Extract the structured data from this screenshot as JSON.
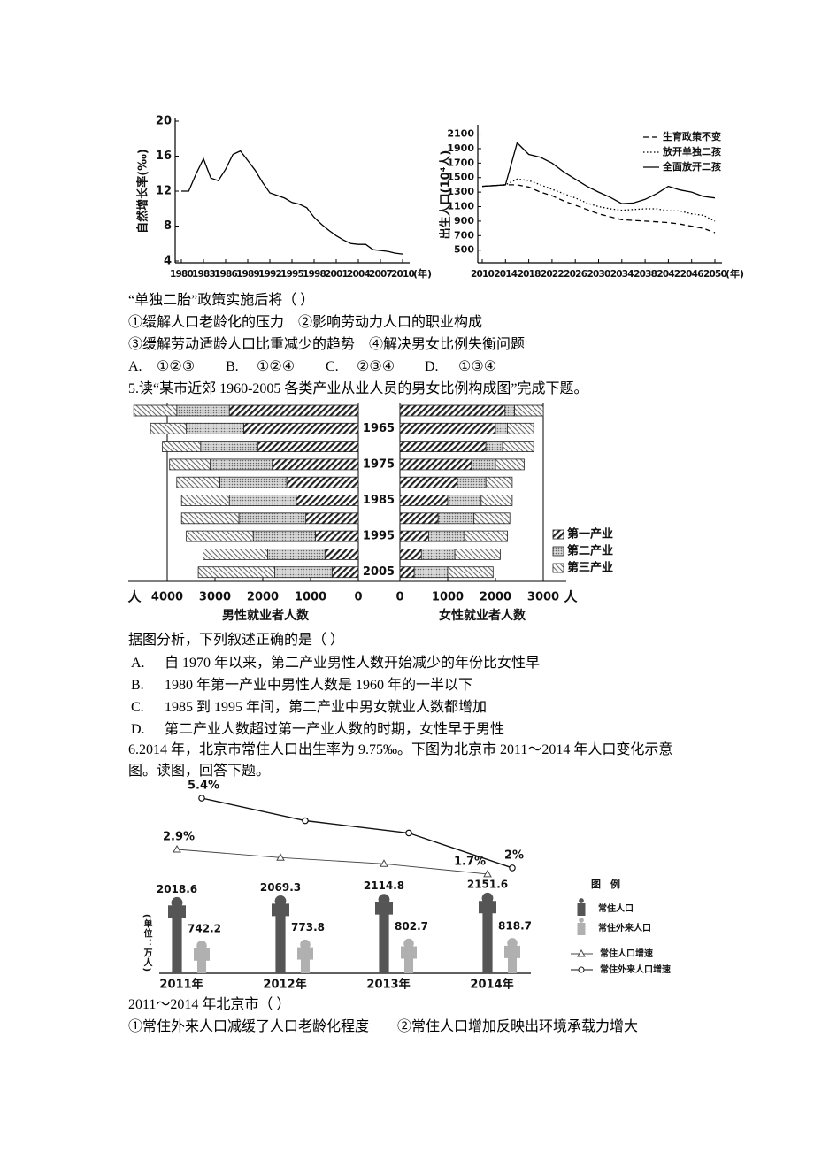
{
  "chart_data": [
    {
      "type": "line",
      "ylabel": "自然增长率(‰)",
      "xlabel": "(年)",
      "x": [
        1980,
        1981,
        1982,
        1983,
        1984,
        1985,
        1986,
        1987,
        1988,
        1989,
        1990,
        1991,
        1992,
        1993,
        1994,
        1995,
        1996,
        1997,
        1998,
        1999,
        2000,
        2001,
        2002,
        2003,
        2004,
        2005,
        2006,
        2007,
        2008,
        2009,
        2010
      ],
      "series": [
        {
          "color": "#000",
          "dash": "solid",
          "values": [
            12.0,
            12.0,
            14.0,
            15.7,
            13.5,
            13.2,
            14.5,
            16.2,
            16.6,
            15.5,
            14.4,
            13.0,
            11.8,
            11.5,
            11.2,
            10.7,
            10.5,
            10.1,
            9.0,
            8.2,
            7.5,
            6.9,
            6.4,
            6.0,
            5.9,
            5.9,
            5.3,
            5.2,
            5.1,
            4.9,
            4.8
          ]
        }
      ],
      "xlim": [
        1980,
        2010
      ],
      "xticks": [
        1980,
        1983,
        1986,
        1989,
        1992,
        1995,
        1998,
        2001,
        2004,
        2007,
        2010
      ],
      "ylim": [
        4,
        20
      ],
      "yticks": [
        4,
        8,
        12,
        16,
        20
      ]
    },
    {
      "type": "line",
      "ylabel": "出生人口(10⁴人)",
      "xlabel": "(年)",
      "x": [
        2010,
        2012,
        2014,
        2016,
        2018,
        2020,
        2022,
        2024,
        2026,
        2028,
        2030,
        2032,
        2034,
        2036,
        2038,
        2040,
        2042,
        2044,
        2046,
        2048,
        2050
      ],
      "series": [
        {
          "name": "生育政策不变",
          "color": "#000",
          "dash": "dashed",
          "values": [
            1380,
            1390,
            1400,
            1400,
            1370,
            1300,
            1250,
            1180,
            1120,
            1060,
            1000,
            960,
            920,
            910,
            900,
            890,
            880,
            860,
            830,
            800,
            740
          ]
        },
        {
          "name": "放开单独二孩",
          "color": "#000",
          "dash": "dotted",
          "values": [
            1380,
            1390,
            1400,
            1480,
            1460,
            1400,
            1340,
            1280,
            1220,
            1150,
            1100,
            1070,
            1050,
            1060,
            1070,
            1070,
            1040,
            1040,
            1000,
            980,
            900
          ]
        },
        {
          "name": "全面放开二孩",
          "color": "#000",
          "dash": "solid",
          "values": [
            1380,
            1390,
            1400,
            1980,
            1820,
            1780,
            1700,
            1580,
            1480,
            1380,
            1300,
            1230,
            1140,
            1150,
            1200,
            1280,
            1380,
            1330,
            1300,
            1240,
            1220
          ]
        }
      ],
      "legend": "upper right",
      "xlim": [
        2010,
        2050
      ],
      "xticks": [
        2010,
        2014,
        2018,
        2022,
        2026,
        2030,
        2034,
        2038,
        2042,
        2046,
        2050
      ],
      "ylim": [
        350,
        2180
      ],
      "yticks": [
        500,
        700,
        900,
        1100,
        1300,
        1500,
        1700,
        1900,
        2100
      ]
    },
    {
      "type": "bar",
      "orientation": "horizontal",
      "stacked": true,
      "categories": [
        null,
        "1965",
        null,
        "1975",
        null,
        "1985",
        null,
        "1995",
        null,
        "2005"
      ],
      "legend": [
        {
          "name": "第一产业",
          "fill": "url(#hatch-dark)"
        },
        {
          "name": "第二产业",
          "fill": "url(#dots)"
        },
        {
          "name": "第三产业",
          "fill": "url(#hatch-light)"
        }
      ],
      "panels": [
        {
          "unit": "人",
          "xlabel": "男性就业者人数",
          "direction": "left",
          "xlim": [
            0,
            4800
          ],
          "xticks": [
            4000,
            3000,
            2000,
            1000,
            0
          ],
          "series": [
            {
              "values": [
                2700,
                2400,
                2100,
                1800,
                1500,
                1300,
                1100,
                900,
                700,
                550
              ]
            },
            {
              "values": [
                1100,
                1200,
                1200,
                1300,
                1400,
                1400,
                1400,
                1300,
                1200,
                1200
              ]
            },
            {
              "values": [
                900,
                750,
                800,
                850,
                900,
                1000,
                1200,
                1400,
                1350,
                1600
              ]
            }
          ]
        },
        {
          "unit": "人",
          "xlabel": "女性就业者人数",
          "direction": "right",
          "xlim": [
            0,
            3200
          ],
          "xticks": [
            0,
            1000,
            2000,
            3000
          ],
          "series": [
            {
              "values": [
                2200,
                2000,
                1800,
                1500,
                1200,
                1000,
                800,
                600,
                450,
                300
              ]
            },
            {
              "values": [
                200,
                250,
                350,
                500,
                600,
                700,
                750,
                750,
                700,
                700
              ]
            },
            {
              "values": [
                600,
                550,
                650,
                600,
                550,
                650,
                750,
                900,
                950,
                950
              ]
            }
          ]
        }
      ]
    },
    {
      "type": "bar_line",
      "unit": "(单位：万人)",
      "legend_title": "图　例",
      "categories": [
        "2011年",
        "2012年",
        "2013年",
        "2014年"
      ],
      "bars": [
        {
          "name": "常住人口",
          "color": "#555",
          "values": [
            2018.6,
            2069.3,
            2114.8,
            2151.6
          ]
        },
        {
          "name": "常住外来人口",
          "color": "#b0b0b0",
          "values": [
            742.2,
            773.8,
            802.7,
            818.7
          ]
        }
      ],
      "lines": [
        {
          "name": "常住人口增速",
          "marker": "triangle",
          "color": "#444",
          "values": [
            2.9,
            2.5,
            2.2,
            1.7
          ],
          "value_labels": [
            "2.9%",
            null,
            null,
            "1.7%"
          ]
        },
        {
          "name": "常住外来人口增速",
          "marker": "circle",
          "color": "#111",
          "values": [
            5.4,
            4.3,
            3.7,
            2
          ],
          "value_labels": [
            "5.4%",
            null,
            null,
            "2%"
          ]
        }
      ]
    }
  ],
  "document": {
    "q4": {
      "stem": "“单独二胎”政策实施后将（ ）",
      "statements": [
        "①缓解人口老龄化的压力　②影响劳动力人口的职业构成",
        "③缓解劳动适龄人口比重减少的趋势　④解决男女比例失衡问题"
      ],
      "options": [
        {
          "label": "A.",
          "text": "①②③"
        },
        {
          "label": "B.",
          "text": "①②④"
        },
        {
          "label": "C.",
          "text": "②③④"
        },
        {
          "label": "D.",
          "text": "①③④"
        }
      ]
    },
    "q5": {
      "intro": "5.读“某市近郊 1960-2005 各类产业从业人员的男女比例构成图”完成下题。",
      "stem": "据图分析，下列叙述正确的是（ ）",
      "options": [
        {
          "label": "A.",
          "text": "自 1970 年以来，第二产业男性人数开始减少的年份比女性早"
        },
        {
          "label": "B.",
          "text": "1980 年第一产业中男性人数是 1960 年的一半以下"
        },
        {
          "label": "C.",
          "text": "1985 到 1995 年间，第二产业中男女就业人数都增加"
        },
        {
          "label": "D.",
          "text": "第二产业人数超过第一产业人数的时期，女性早于男性"
        }
      ]
    },
    "q6": {
      "intro": "6.2014 年，北京市常住人口出生率为 9.75‰。下图为北京市 2011～2014 年人口变化示意图。读图，回答下题。",
      "stem": "2011～2014 年北京市（ ）",
      "statements": [
        "①常住外来人口减缓了人口老龄化程度　　②常住人口增加反映出环境承载力增大"
      ]
    }
  }
}
